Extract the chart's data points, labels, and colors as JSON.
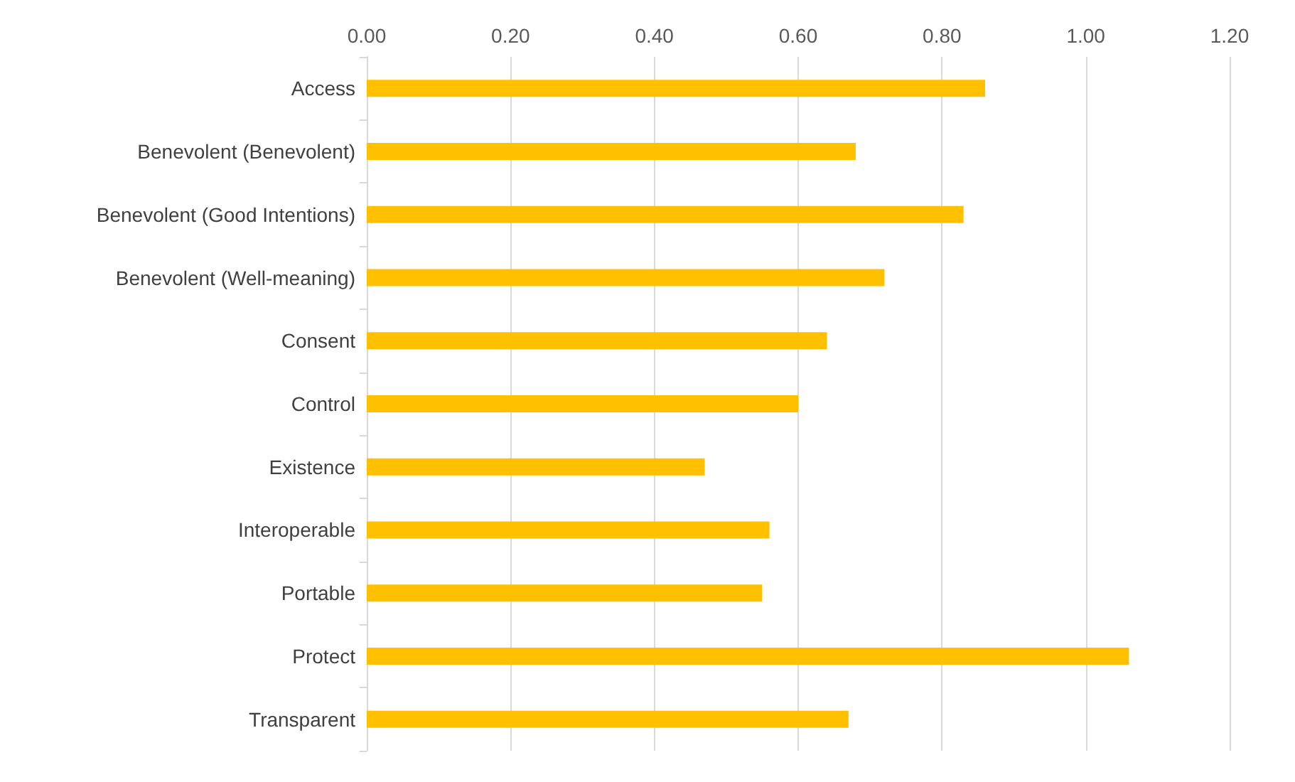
{
  "chart_data": {
    "type": "bar",
    "orientation": "horizontal",
    "categories": [
      "Access",
      "Benevolent (Benevolent)",
      "Benevolent (Good Intentions)",
      "Benevolent (Well-meaning)",
      "Consent",
      "Control",
      "Existence",
      "Interoperable",
      "Portable",
      "Protect",
      "Transparent"
    ],
    "values": [
      0.86,
      0.68,
      0.83,
      0.72,
      0.64,
      0.6,
      0.47,
      0.56,
      0.55,
      1.06,
      0.67
    ],
    "color": "#ffc000",
    "xlim": [
      0,
      1.2
    ],
    "xticks": [
      {
        "value": 0,
        "label": "0.00"
      },
      {
        "value": 0.2,
        "label": "0.20"
      },
      {
        "value": 0.4,
        "label": "0.40"
      },
      {
        "value": 0.6,
        "label": "0.60"
      },
      {
        "value": 0.8,
        "label": "0.80"
      },
      {
        "value": 1,
        "label": "1.00"
      },
      {
        "value": 1.2,
        "label": "1.20"
      }
    ],
    "grid": "x"
  }
}
